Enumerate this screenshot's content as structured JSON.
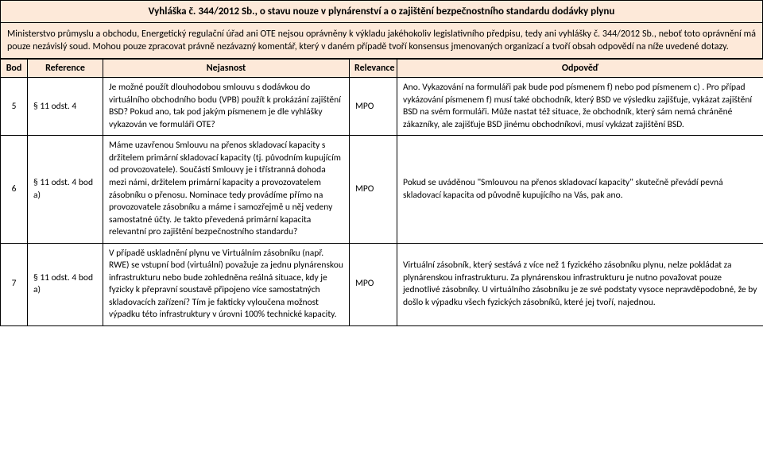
{
  "title": "Vyhláška č. 344/2012 Sb., o stavu nouze v plynárenství a o zajištění bezpečnostního standardu dodávky plynu",
  "description": "Ministerstvo průmyslu a obchodu, Energetický regulační úřad ani OTE nejsou oprávněny k výkladu jakéhokoliv legislativního předpisu, tedy ani vyhlášky č. 344/2012 Sb., neboť toto oprávnění má pouze nezávislý soud. Mohou pouze zpracovat právně nezávazný komentář, který v daném případě tvoří konsensus jmenovaných organizací a tvoří obsah odpovědí na níže uvedené dotazy.",
  "headers": {
    "bod": "Bod",
    "reference": "Reference",
    "nejasnost": "Nejasnost",
    "relevance": "Relevance",
    "odpoved": "Odpověď"
  },
  "rows": [
    {
      "bod": "5",
      "reference": "§ 11 odst. 4",
      "nejasnost": "Je možné použít dlouhodobou smlouvu s dodávkou do virtuálního obchodního bodu (VPB) použít k prokázání zajištění BSD? Pokud ano, tak pod jakým písmenem je dle vyhlášky vykazován ve formuláři OTE?",
      "relevance": "MPO",
      "odpoved": "Ano. Vykazování na formuláři pak bude pod písmenem f) nebo pod písmenem c) . Pro případ vykázování písmenem f) musí také obchodník, který BSD ve výsledku zajišťuje, vykázat zajištění BSD na svém formuláři. Může nastat též situace, že obchodník, který sám nemá chráněné zákazníky, ale zajišťuje BSD jinému obchodníkovi, musí vykázat zajištění BSD."
    },
    {
      "bod": "6",
      "reference": "§ 11 odst. 4 bod a)",
      "nejasnost": "Máme uzavřenou Smlouvu na přenos skladovací kapacity s držitelem primární skladovací kapacity (tj. původním kupujícím od provozovatele). Součástí Smlouvy je i třístranná dohoda mezi námi, držitelem primární kapacity a provozovatelem zásobníku o přenosu.\nNominace tedy provádíme přímo na provozovatele zásobníku a máme i samozřejmě u něj vedeny samostatné účty. Je takto převedená primární kapacita relevantní pro zajištění bezpečnostního standardu?",
      "relevance": "MPO",
      "odpoved": "Pokud se uváděnou \"Smlouvou na přenos skladovací kapacity\" skutečně převádí pevná skladovací kapacita od původně kupujícího na Vás, pak ano."
    },
    {
      "bod": "7",
      "reference": "§ 11 odst. 4 bod a)",
      "nejasnost": "V případě uskladnění plynu ve Virtuálním zásobníku (např. RWE) se vstupní bod (virtuální) považuje za jednu plynárenskou infrastrukturu nebo bude zohledněna reálná situace, kdy je fyzicky k přepravní soustavě připojeno více samostatných skladovacích zařízení? Tím je fakticky vyloučena možnost výpadku této infrastruktury v úrovni 100% technické kapacity.",
      "relevance": "MPO",
      "odpoved": "Virtuální zásobník, který sestává z více než 1 fyzického zásobníku plynu, nelze pokládat za plynárenskou infrastrukturu. Za plynárenskou infrastrukturu je nutno považovat pouze jednotlivé zásobníky. U virtuálního zásobníku je ze své podstaty vysoce nepravděpodobné, že by došlo k výpadku všech fyzických zásobníků, které jej tvoří, najednou."
    }
  ],
  "colors": {
    "header_bg": "#fde9d9",
    "border": "#000000",
    "text": "#000000"
  },
  "fonts": {
    "body_size": 12,
    "title_size": 13
  }
}
